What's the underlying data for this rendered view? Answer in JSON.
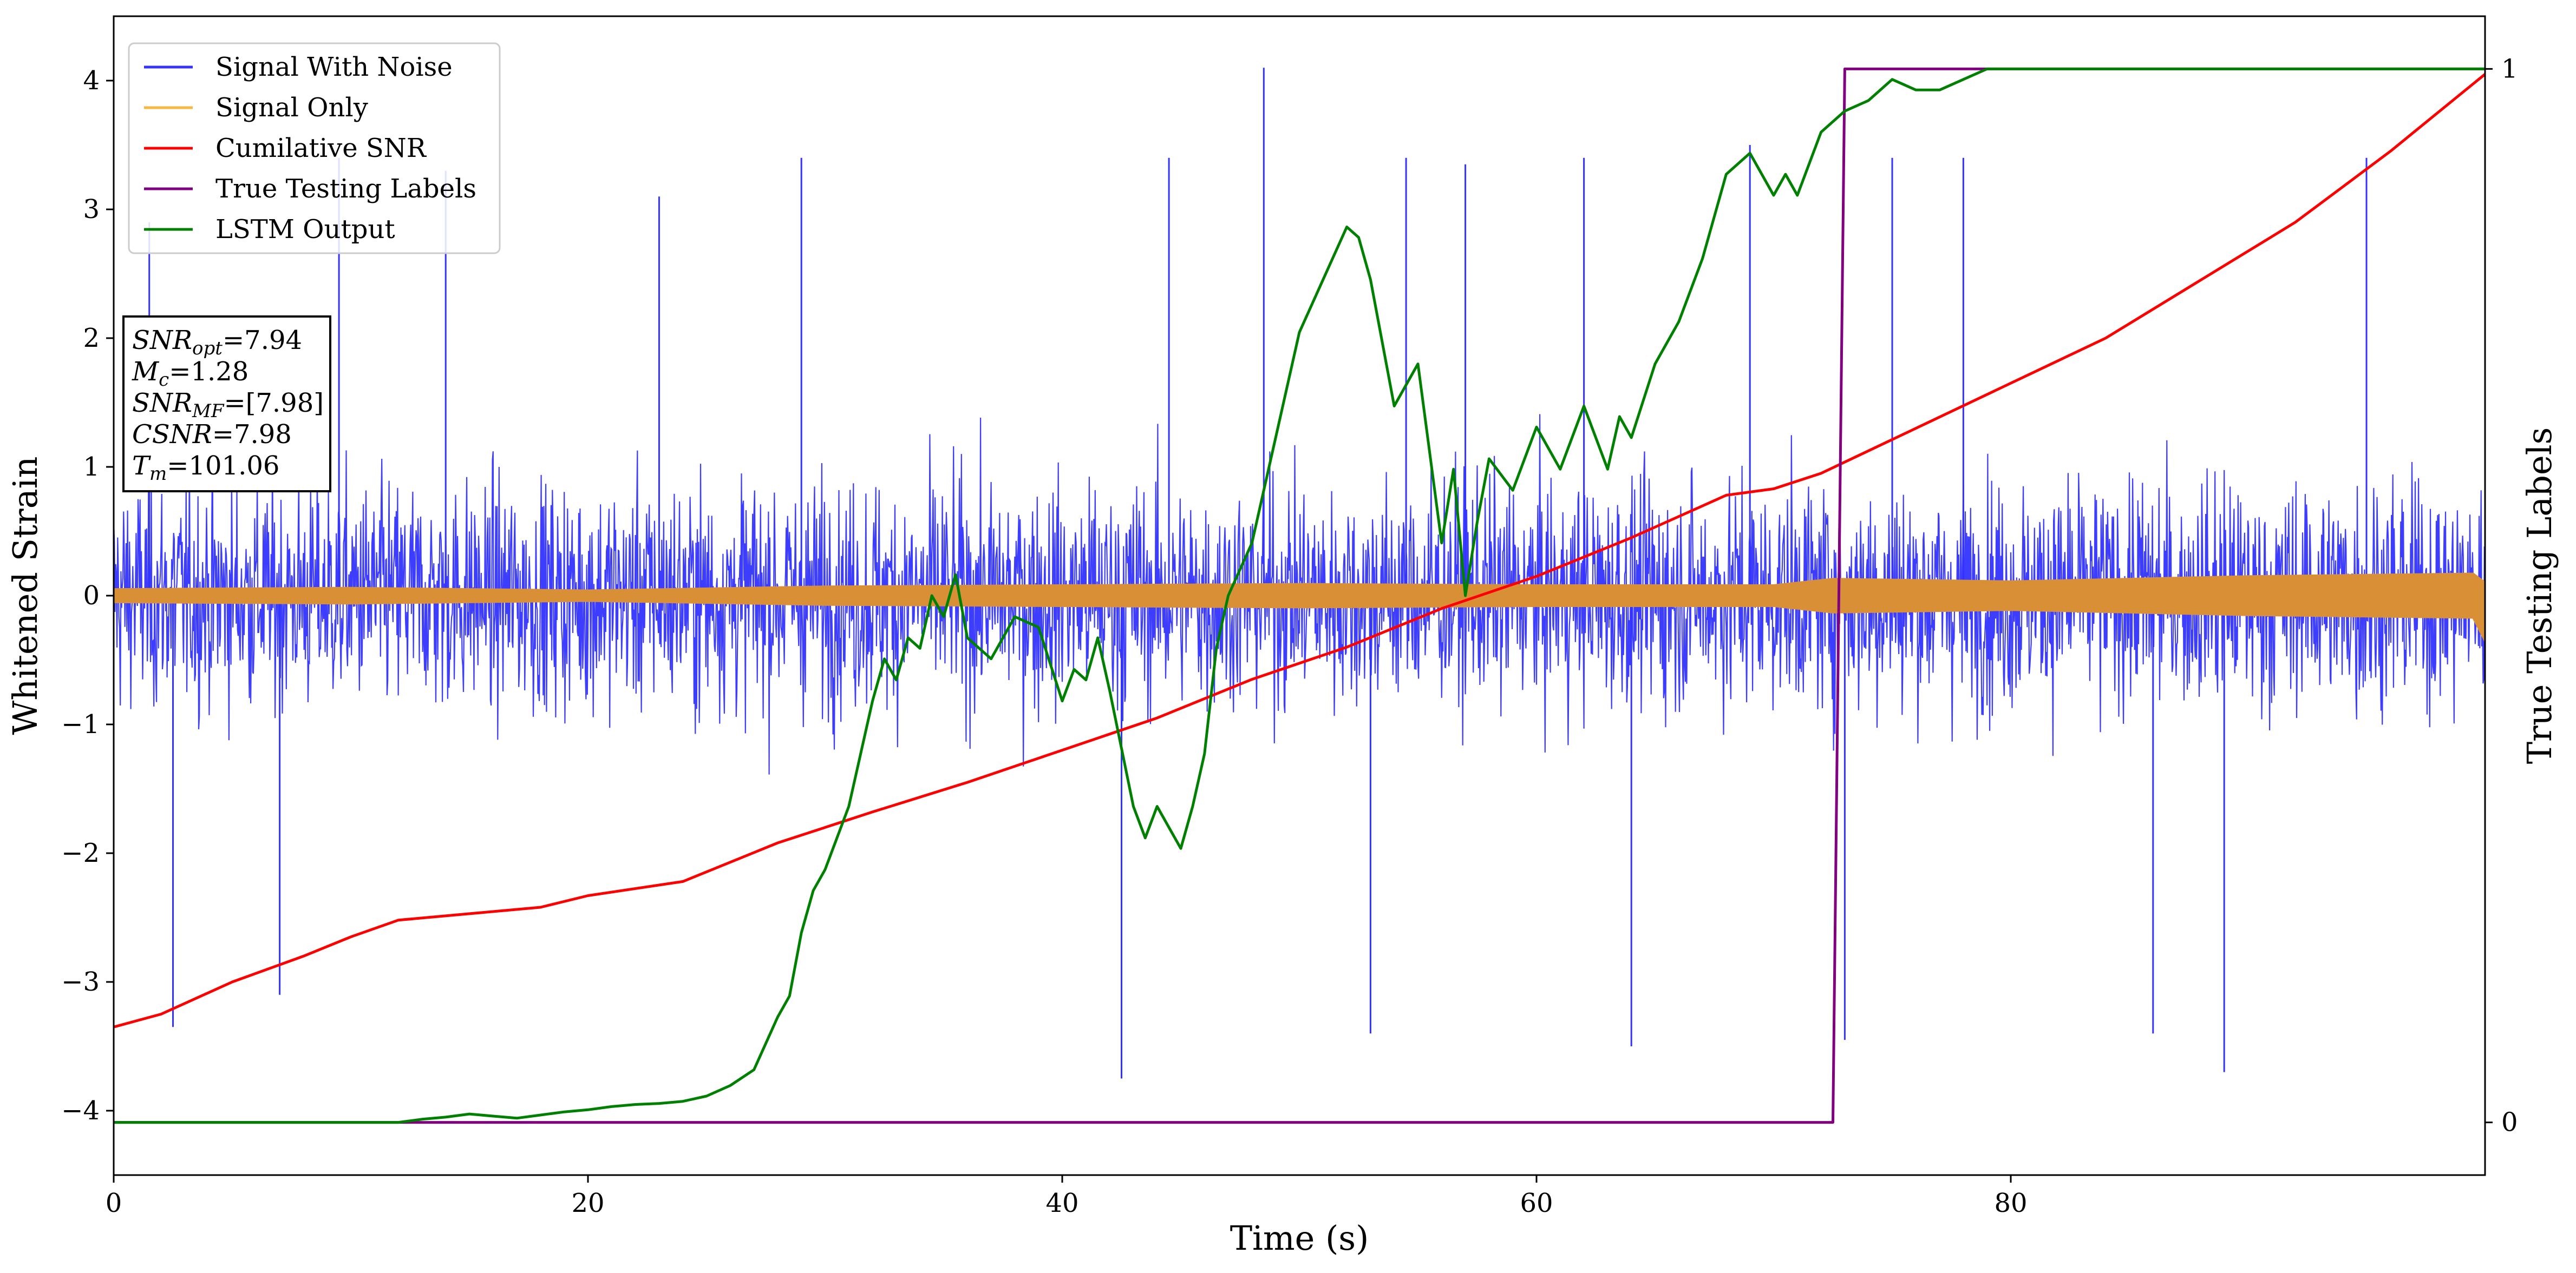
{
  "chart_data": {
    "type": "line",
    "xlabel": "Time (s)",
    "ylabel": "Whitened Strain",
    "y2label": "True Testing Labels",
    "xlim": [
      0,
      100
    ],
    "ylim": [
      -4.5,
      4.5
    ],
    "y2lim": [
      -0.05,
      1.05
    ],
    "xticks": [
      0,
      20,
      40,
      60,
      80
    ],
    "yticks": [
      -4,
      -3,
      -2,
      -1,
      0,
      1,
      2,
      3,
      4
    ],
    "y2ticks": [
      0,
      1
    ],
    "grid": false,
    "legend_position": "top-left",
    "annotation": {
      "lines": [
        {
          "sym": "SNR",
          "sub": "opt",
          "value": "=7.94"
        },
        {
          "sym": "M",
          "sub": "c",
          "value": "=1.28"
        },
        {
          "sym": "SNR",
          "sub": "MF",
          "value": "=[7.98]"
        },
        {
          "sym": "CSNR",
          "sub": "",
          "value": "=7.98"
        },
        {
          "sym": "T",
          "sub": "m",
          "value": "=101.06"
        }
      ]
    },
    "series": [
      {
        "name": "Signal With Noise",
        "color": "#3333ff",
        "axis": "left",
        "kind": "noise_band",
        "typical_amplitude": [
          -1.5,
          1.8
        ],
        "spike_points": [
          [
            1.5,
            2.9
          ],
          [
            2.5,
            -3.35
          ],
          [
            7,
            -3.1
          ],
          [
            9.5,
            3.4
          ],
          [
            14,
            3.3
          ],
          [
            23,
            3.1
          ],
          [
            29,
            3.4
          ],
          [
            42.5,
            -3.75
          ],
          [
            44.5,
            3.4
          ],
          [
            48.5,
            4.1
          ],
          [
            53,
            -3.4
          ],
          [
            54.5,
            3.4
          ],
          [
            57,
            3.35
          ],
          [
            62,
            3.4
          ],
          [
            64,
            -3.5
          ],
          [
            69,
            3.5
          ],
          [
            73,
            -3.45
          ],
          [
            75,
            3.4
          ],
          [
            78,
            3.4
          ],
          [
            86,
            -3.4
          ],
          [
            89,
            -3.7
          ],
          [
            95,
            3.4
          ]
        ]
      },
      {
        "name": "Signal Only",
        "color": "#e8a33a",
        "axis": "left",
        "kind": "envelope",
        "x": [
          0,
          10,
          20,
          30,
          40,
          50,
          60,
          70,
          72.5,
          80,
          90,
          99.5,
          100
        ],
        "upper": [
          0.05,
          0.06,
          0.04,
          0.07,
          0.08,
          0.09,
          0.08,
          0.08,
          0.13,
          0.11,
          0.15,
          0.17,
          0.1
        ],
        "lower": [
          -0.05,
          -0.06,
          -0.04,
          -0.07,
          -0.08,
          -0.09,
          -0.08,
          -0.08,
          -0.13,
          -0.11,
          -0.15,
          -0.17,
          -0.35
        ]
      },
      {
        "name": "Cumilative SNR",
        "color": "#ff0000",
        "axis": "left",
        "x": [
          0,
          2,
          5,
          8,
          10,
          12,
          15,
          18,
          20,
          24,
          28,
          32,
          36,
          40,
          44,
          48,
          52,
          56,
          60,
          64,
          68,
          70,
          72,
          76,
          80,
          84,
          88,
          92,
          96,
          100
        ],
        "y": [
          -3.35,
          -3.25,
          -3.0,
          -2.8,
          -2.65,
          -2.52,
          -2.47,
          -2.42,
          -2.33,
          -2.22,
          -1.92,
          -1.68,
          -1.45,
          -1.2,
          -0.95,
          -0.65,
          -0.4,
          -0.1,
          0.15,
          0.45,
          0.78,
          0.83,
          0.95,
          1.3,
          1.65,
          2.0,
          2.45,
          2.9,
          3.45,
          4.05
        ]
      },
      {
        "name": "True Testing Labels",
        "color": "#800080",
        "axis": "right",
        "x": [
          0,
          72.5,
          73,
          100
        ],
        "y": [
          0,
          0,
          1,
          1
        ]
      },
      {
        "name": "LSTM Output",
        "color": "#008000",
        "axis": "right",
        "x": [
          0,
          12,
          13,
          14,
          15,
          16,
          17,
          18,
          19,
          20,
          21,
          22,
          23,
          24,
          25,
          26,
          27,
          28,
          28.5,
          29,
          29.5,
          30,
          31,
          32,
          32.5,
          33,
          33.5,
          34,
          34.5,
          35,
          35.5,
          36,
          37,
          37.5,
          38,
          39,
          40,
          40.5,
          41,
          41.5,
          42,
          43,
          43.5,
          44,
          44.5,
          45,
          45.5,
          46,
          46.5,
          47,
          48,
          49,
          50,
          51,
          52,
          52.5,
          53,
          54,
          55,
          56,
          56.5,
          57,
          57.5,
          58,
          59,
          60,
          61,
          62,
          63,
          63.5,
          64,
          65,
          66,
          67,
          67.5,
          68,
          69,
          70,
          70.5,
          71,
          72,
          73,
          74,
          75,
          76,
          77,
          78,
          79,
          80,
          100
        ],
        "y": [
          0,
          0,
          0.003,
          0.005,
          0.008,
          0.006,
          0.004,
          0.007,
          0.01,
          0.012,
          0.015,
          0.017,
          0.018,
          0.02,
          0.025,
          0.035,
          0.05,
          0.1,
          0.12,
          0.18,
          0.22,
          0.24,
          0.3,
          0.4,
          0.44,
          0.42,
          0.46,
          0.45,
          0.5,
          0.48,
          0.52,
          0.46,
          0.44,
          0.46,
          0.48,
          0.47,
          0.4,
          0.43,
          0.42,
          0.46,
          0.41,
          0.3,
          0.27,
          0.3,
          0.28,
          0.26,
          0.3,
          0.35,
          0.45,
          0.5,
          0.55,
          0.65,
          0.75,
          0.8,
          0.85,
          0.84,
          0.8,
          0.68,
          0.72,
          0.55,
          0.62,
          0.5,
          0.57,
          0.63,
          0.6,
          0.66,
          0.62,
          0.68,
          0.62,
          0.67,
          0.65,
          0.72,
          0.76,
          0.82,
          0.86,
          0.9,
          0.92,
          0.88,
          0.9,
          0.88,
          0.94,
          0.96,
          0.97,
          0.99,
          0.98,
          0.98,
          0.99,
          1.0,
          1.0,
          1.0
        ]
      }
    ]
  }
}
